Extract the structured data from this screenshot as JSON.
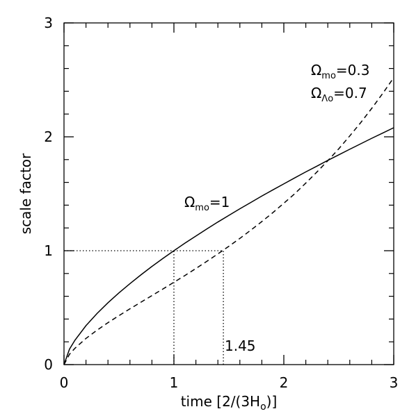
{
  "chart_data": {
    "type": "line",
    "x": [
      0,
      0.05,
      0.1,
      0.2,
      0.3,
      0.4,
      0.5,
      0.6,
      0.7,
      0.8,
      0.9,
      1.0,
      1.1,
      1.2,
      1.3,
      1.4,
      1.5,
      1.6,
      1.7,
      1.8,
      1.9,
      2.0,
      2.1,
      2.2,
      2.3,
      2.4,
      2.5,
      2.6,
      2.7,
      2.8,
      2.9,
      3.0
    ],
    "series": [
      {
        "name": "Ωmo=1",
        "color": "#000000",
        "style": "solid",
        "values": [
          0,
          0.136,
          0.215,
          0.342,
          0.448,
          0.543,
          0.63,
          0.711,
          0.788,
          0.862,
          0.932,
          1.0,
          1.066,
          1.129,
          1.191,
          1.252,
          1.31,
          1.368,
          1.424,
          1.48,
          1.534,
          1.587,
          1.64,
          1.692,
          1.742,
          1.793,
          1.842,
          1.891,
          1.939,
          1.987,
          2.033,
          2.08
        ]
      },
      {
        "name": "Ωmo=0.3 ΩΛo=0.7",
        "color": "#000000",
        "style": "dashed",
        "values": [
          0,
          0.091,
          0.144,
          0.23,
          0.302,
          0.368,
          0.43,
          0.49,
          0.548,
          0.606,
          0.664,
          0.723,
          0.782,
          0.844,
          0.907,
          0.972,
          1.039,
          1.108,
          1.181,
          1.256,
          1.334,
          1.417,
          1.501,
          1.594,
          1.69,
          1.79,
          1.895,
          2.008,
          2.125,
          2.25,
          2.381,
          2.52
        ]
      }
    ],
    "xlabel": {
      "text": "time [2/(3H",
      "sub": "o",
      "end": ")]"
    },
    "ylabel": "scale factor",
    "xlim": [
      0,
      3
    ],
    "ylim": [
      0,
      3
    ],
    "xticks": [
      0,
      1,
      2,
      3
    ],
    "yticks": [
      0,
      1,
      2,
      3
    ],
    "minor_ticks_per_major": 5,
    "reference": {
      "x": [
        1,
        1.45
      ],
      "y": 1
    },
    "annotations": [
      {
        "base": "Ω",
        "sub": "mo",
        "rest": "=1"
      },
      {
        "base": "Ω",
        "sub": "mo",
        "rest": "=0.3"
      },
      {
        "base": "Ω",
        "sub": "Λo",
        "rest": "=0.7"
      },
      {
        "rest": "1.45"
      }
    ]
  }
}
